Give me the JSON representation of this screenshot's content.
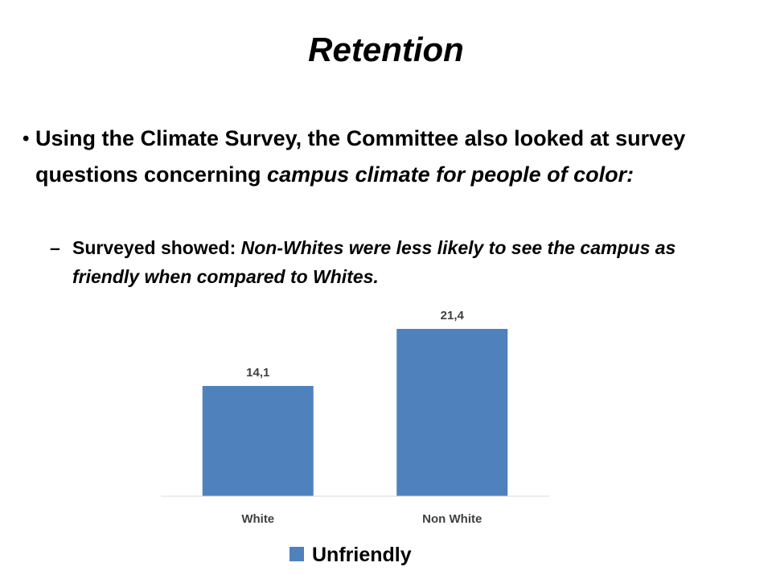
{
  "slide": {
    "title": "Retention",
    "bullet1": {
      "text_plain": "Using the Climate Survey, the Committee also looked at survey questions concerning ",
      "text_italic": "campus climate for people of color:"
    },
    "subbullet": {
      "text_plain": "Surveyed showed:  ",
      "text_italic": "Non-Whites were less likely to see the campus as friendly when compared to Whites."
    }
  },
  "chart_data": {
    "type": "bar",
    "categories": [
      "White",
      "Non White"
    ],
    "series": [
      {
        "name": "Unfriendly",
        "values": [
          14.1,
          21.4
        ],
        "labels": [
          "14,1",
          "21,4"
        ],
        "color": "#4f81bd"
      }
    ],
    "ylim": [
      0,
      25
    ],
    "grid": false,
    "legend": "bottom",
    "title": "",
    "xlabel": "",
    "ylabel": ""
  }
}
